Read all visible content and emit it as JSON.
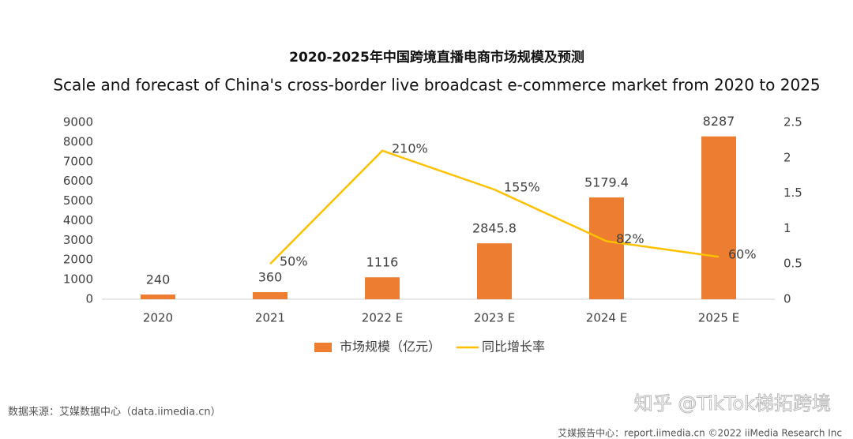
{
  "chart_data": {
    "type": "bar",
    "title": "2020-2025年中国跨境直播电商市场规模及预测",
    "subtitle": "Scale and forecast of China's cross-border live broadcast e-commerce market from 2020 to 2025",
    "categories": [
      "2020",
      "2021",
      "2022 E",
      "2023 E",
      "2024 E",
      "2025 E"
    ],
    "series": [
      {
        "name": "市场规模（亿元）",
        "color": "#ed7d31",
        "values": [
          240,
          360,
          1116,
          2845.8,
          5179.4,
          8287
        ]
      },
      {
        "name": "同比增长率",
        "type": "line",
        "axis": "y2",
        "color": "#ffc000",
        "values": [
          null,
          0.5,
          2.1,
          1.55,
          0.82,
          0.6
        ],
        "value_labels": [
          null,
          "50%",
          "210%",
          "155%",
          "82%",
          "60%"
        ]
      }
    ],
    "ylim": [
      0,
      9000
    ],
    "yticks": [
      0,
      1000,
      2000,
      3000,
      4000,
      5000,
      6000,
      7000,
      8000,
      9000
    ],
    "y2lim": [
      0,
      2.5
    ],
    "y2ticks": [
      0,
      0.5,
      1,
      1.5,
      2,
      2.5
    ],
    "grid": false,
    "legend": "bottom"
  },
  "source": "数据来源：艾媒数据中心（data.iimedia.cn）",
  "footer": "艾媒报告中心：report.iimedia.cn   ©2022  iiMedia Research  Inc",
  "watermark": "知乎 @TikTok梯拓跨境"
}
